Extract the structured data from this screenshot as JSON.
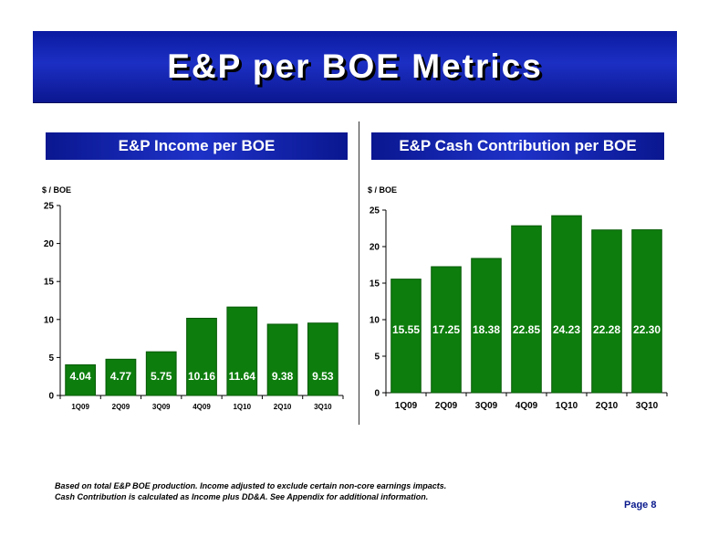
{
  "slide": {
    "title": "E&P per BOE Metrics",
    "footnote_1": "Based on total E&P BOE production. Income adjusted to exclude certain non-core earnings impacts.",
    "footnote_2": "Cash Contribution is calculated as Income plus DD&A. See Appendix for additional information.",
    "page": "Page 8"
  },
  "colors": {
    "banner": "#1224b0",
    "bar": "#0d7d0d",
    "bar_dark": "#065a06",
    "label_text": "#ffffff",
    "page_number": "#0a1a8c"
  },
  "chart_data": [
    {
      "type": "bar",
      "title": "E&P Income per BOE",
      "ylabel": "$ / BOE",
      "xlabel": "",
      "categories": [
        "1Q09",
        "2Q09",
        "3Q09",
        "4Q09",
        "1Q10",
        "2Q10",
        "3Q10"
      ],
      "values": [
        4.04,
        4.77,
        5.75,
        10.16,
        11.64,
        9.38,
        9.53
      ],
      "data_labels": [
        "4.04",
        "4.77",
        "5.75",
        "10.16",
        "11.64",
        "9.38",
        "9.53"
      ],
      "ylim": [
        0,
        25
      ],
      "yticks": [
        0,
        5,
        10,
        15,
        20,
        25
      ],
      "grid": false
    },
    {
      "type": "bar",
      "title": "E&P Cash Contribution per BOE",
      "ylabel": "$ / BOE",
      "xlabel": "",
      "categories": [
        "1Q09",
        "2Q09",
        "3Q09",
        "4Q09",
        "1Q10",
        "2Q10",
        "3Q10"
      ],
      "values": [
        15.55,
        17.25,
        18.38,
        22.85,
        24.23,
        22.28,
        22.3
      ],
      "data_labels": [
        "15.55",
        "17.25",
        "18.38",
        "22.85",
        "24.23",
        "22.28",
        "22.30"
      ],
      "ylim": [
        0,
        25
      ],
      "yticks": [
        0,
        5,
        10,
        15,
        20,
        25
      ],
      "grid": false
    }
  ]
}
